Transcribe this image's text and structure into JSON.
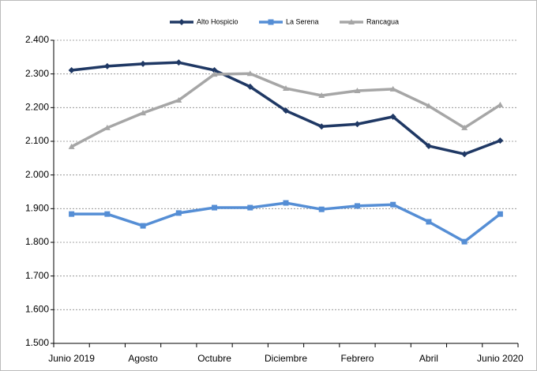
{
  "chart_data": {
    "type": "line",
    "categories": [
      "Junio 2019",
      null,
      "Agosto",
      null,
      "Octubre",
      null,
      "Diciembre",
      null,
      "Febrero",
      null,
      "Abril",
      null,
      "Junio 2020"
    ],
    "series": [
      {
        "name": "Alto Hospicio",
        "color": "#1f3864",
        "marker": "diamond",
        "values": [
          2311,
          2323,
          2330,
          2334,
          2311,
          2262,
          2191,
          2144,
          2151,
          2173,
          2086,
          2062,
          2102
        ]
      },
      {
        "name": "La Serena",
        "color": "#558ed5",
        "marker": "square",
        "values": [
          1884,
          1884,
          1849,
          1887,
          1903,
          1903,
          1917,
          1898,
          1908,
          1912,
          1861,
          1802,
          1884
        ]
      },
      {
        "name": "Rancagua",
        "color": "#a6a6a6",
        "marker": "triangle",
        "values": [
          2084,
          2140,
          2184,
          2222,
          2299,
          2301,
          2257,
          2236,
          2250,
          2255,
          2205,
          2140,
          2208
        ]
      }
    ],
    "ylim": [
      1500,
      2400
    ],
    "yticks": [
      {
        "value": 1500,
        "label": "1.500"
      },
      {
        "value": 1600,
        "label": "1.600"
      },
      {
        "value": 1700,
        "label": "1.700"
      },
      {
        "value": 1800,
        "label": "1.800"
      },
      {
        "value": 1900,
        "label": "1.900"
      },
      {
        "value": 2000,
        "label": "2.000"
      },
      {
        "value": 2100,
        "label": "2.100"
      },
      {
        "value": 2200,
        "label": "2.200"
      },
      {
        "value": 2300,
        "label": "2.300"
      },
      {
        "value": 2400,
        "label": "2.400"
      }
    ],
    "grid": true,
    "legend": "top"
  }
}
